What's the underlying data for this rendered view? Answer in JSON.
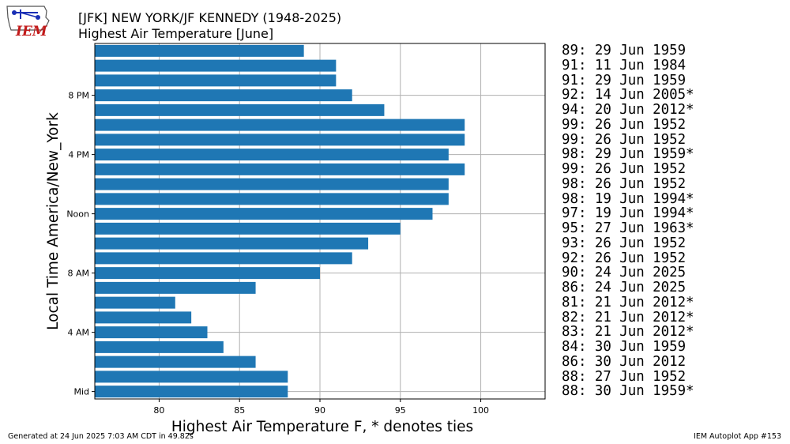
{
  "header": {
    "title": "[JFK] NEW YORK/JF KENNEDY (1948-2025)",
    "subtitle": "Highest Air Temperature [June]"
  },
  "logo": {
    "text": "IEM",
    "color": "#c21a1a"
  },
  "footer": {
    "generated": "Generated at 24 Jun 2025 7:03 AM CDT in 49.82s",
    "app": "IEM Autoplot App #153"
  },
  "chart_data": {
    "type": "bar",
    "orientation": "horizontal",
    "xlabel": "Highest Air Temperature F, * denotes ties",
    "ylabel": "Local Time America/New_York",
    "xlim": [
      76,
      104
    ],
    "ylim": [
      -0.5,
      23.5
    ],
    "grid": true,
    "bar_color": "#1f77b4",
    "x_ticks": [
      80,
      85,
      90,
      95,
      100
    ],
    "y_ticks": [
      {
        "hour": 0,
        "label": "Mid"
      },
      {
        "hour": 4,
        "label": "4 AM"
      },
      {
        "hour": 8,
        "label": "8 AM"
      },
      {
        "hour": 12,
        "label": "Noon"
      },
      {
        "hour": 16,
        "label": "4 PM"
      },
      {
        "hour": 20,
        "label": "8 PM"
      }
    ],
    "hours": [
      0,
      1,
      2,
      3,
      4,
      5,
      6,
      7,
      8,
      9,
      10,
      11,
      12,
      13,
      14,
      15,
      16,
      17,
      18,
      19,
      20,
      21,
      22,
      23
    ],
    "values": [
      88,
      88,
      86,
      84,
      83,
      82,
      81,
      86,
      90,
      92,
      93,
      95,
      97,
      98,
      98,
      99,
      98,
      99,
      99,
      94,
      92,
      91,
      91,
      89
    ],
    "records": [
      "89: 29 Jun 1959",
      "91: 11 Jun 1984",
      "91: 29 Jun 1959",
      "92: 14 Jun 2005*",
      "94: 20 Jun 2012*",
      "99: 26 Jun 1952",
      "99: 26 Jun 1952",
      "98: 29 Jun 1959*",
      "99: 26 Jun 1952",
      "98: 26 Jun 1952",
      "98: 19 Jun 1994*",
      "97: 19 Jun 1994*",
      "95: 27 Jun 1963*",
      "93: 26 Jun 1952",
      "92: 26 Jun 1952",
      "90: 24 Jun 2025",
      "86: 24 Jun 2025",
      "81: 21 Jun 2012*",
      "82: 21 Jun 2012*",
      "83: 21 Jun 2012*",
      "84: 30 Jun 1959",
      "86: 30 Jun 2012",
      "88: 27 Jun 1952",
      "88: 30 Jun 1959*"
    ]
  }
}
